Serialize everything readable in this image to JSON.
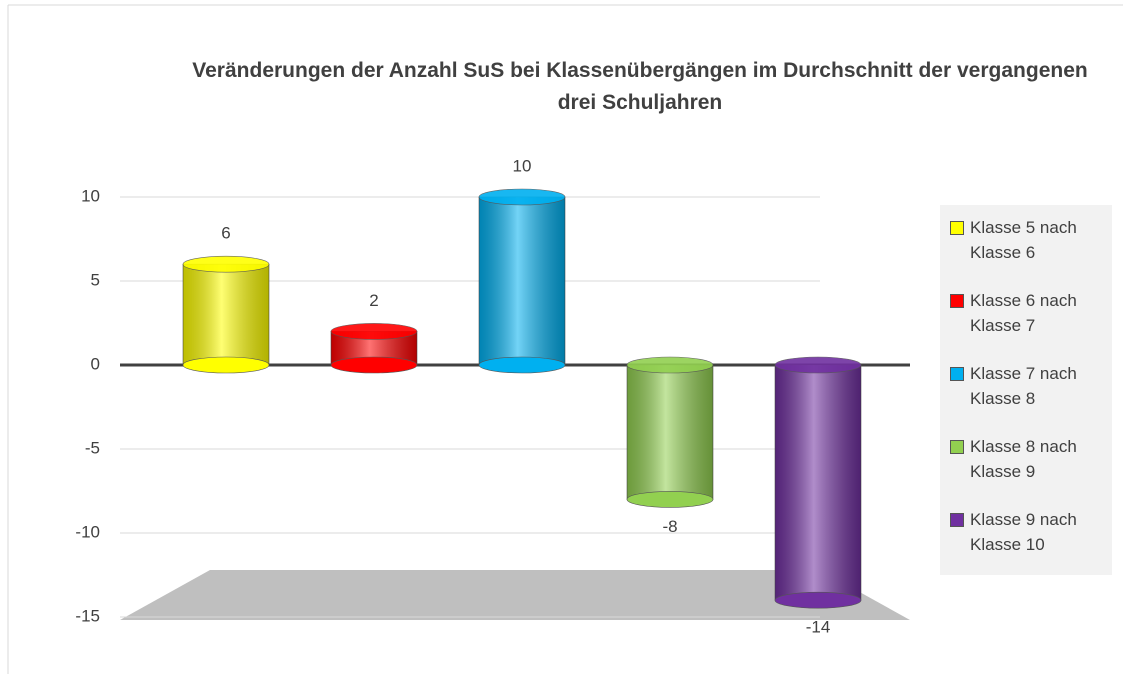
{
  "chart_data": {
    "type": "bar",
    "title": "Veränderungen der Anzahl SuS bei Klassenübergängen im Durchschnitt der vergangenen drei Schuljahren",
    "series": [
      {
        "name": "Klasse 5 nach Klasse 6",
        "color": "#ffff00",
        "values": [
          6
        ]
      },
      {
        "name": "Klasse 6 nach Klasse 7",
        "color": "#ff0000",
        "values": [
          2
        ]
      },
      {
        "name": "Klasse 7 nach Klasse 8",
        "color": "#00b0f0",
        "values": [
          10
        ]
      },
      {
        "name": "Klasse 8 nach Klasse 9",
        "color": "#92d050",
        "values": [
          -8
        ]
      },
      {
        "name": "Klasse 9 nach Klasse 10",
        "color": "#7030a0",
        "values": [
          -14
        ]
      }
    ],
    "ylim": [
      -15,
      10
    ],
    "yticks": [
      -15,
      -10,
      -5,
      0,
      5,
      10
    ],
    "grid": true,
    "legend": "right"
  }
}
